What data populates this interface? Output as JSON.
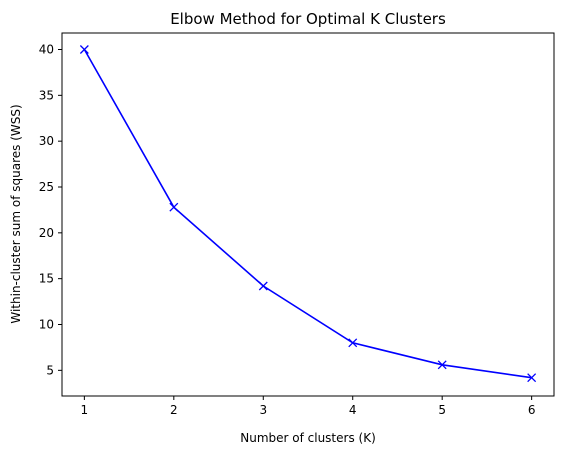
{
  "chart_data": {
    "type": "line",
    "title": "Elbow Method for Optimal K Clusters",
    "xlabel": "Number of clusters (K)",
    "ylabel": "Within-cluster sum of squares (WSS)",
    "x": [
      1,
      2,
      3,
      4,
      5,
      6
    ],
    "series": [
      {
        "values": [
          40.0,
          22.8,
          14.2,
          8.0,
          5.6,
          4.2
        ],
        "color": "#0000ff",
        "marker": "x"
      }
    ],
    "xticks": [
      "1",
      "2",
      "3",
      "4",
      "5",
      "6"
    ],
    "yticks": [
      "5",
      "10",
      "15",
      "20",
      "25",
      "30",
      "35",
      "40"
    ],
    "xlim": [
      0.75,
      6.25
    ],
    "ylim": [
      2.2,
      41.8
    ],
    "grid": false
  }
}
